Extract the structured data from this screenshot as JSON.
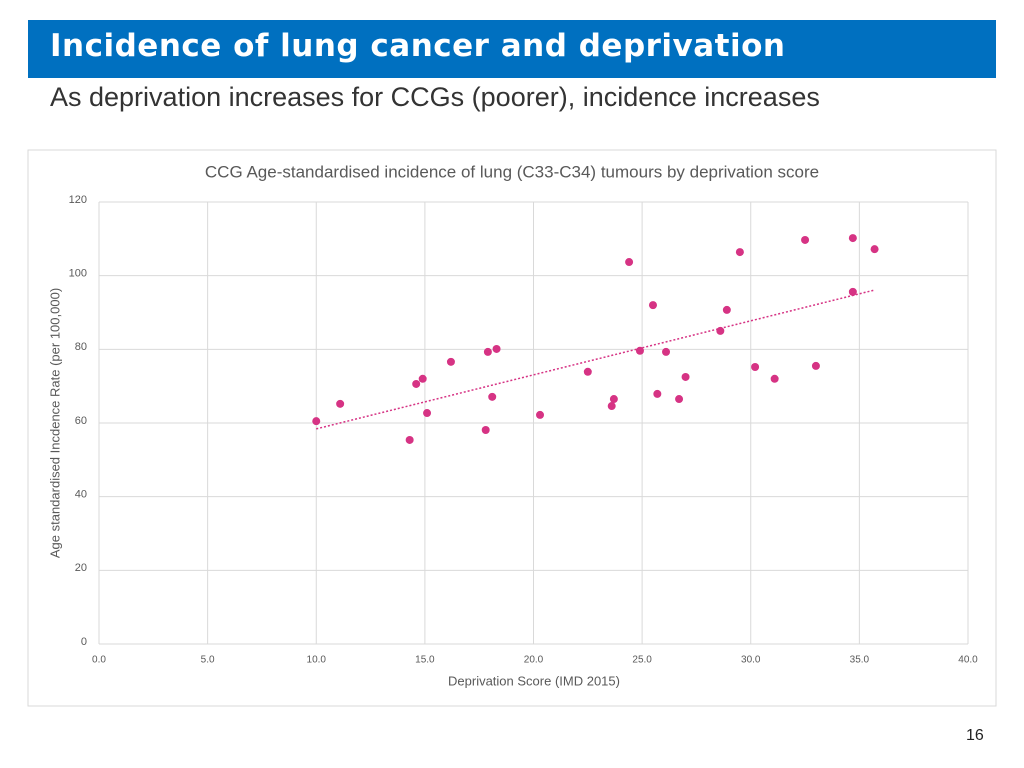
{
  "slide": {
    "title": "Incidence of lung cancer and deprivation",
    "subtitle": "As deprivation increases for CCGs (poorer), incidence increases",
    "page_number": "16"
  },
  "chart_data": {
    "type": "scatter",
    "title": "CCG Age-standardised incidence of lung (C33-C34) tumours by deprivation score",
    "x_label": "Deprivation Score (IMD 2015)",
    "y_label": "Age standardised Incdence Rate (per 100,000)",
    "xlim": [
      0,
      40
    ],
    "ylim": [
      0,
      120
    ],
    "xticks": [
      {
        "value": 0,
        "label": "0.0"
      },
      {
        "value": 5,
        "label": "5.0"
      },
      {
        "value": 10,
        "label": "10.0"
      },
      {
        "value": 15,
        "label": "15.0"
      },
      {
        "value": 20,
        "label": "20.0"
      },
      {
        "value": 25,
        "label": "25.0"
      },
      {
        "value": 30,
        "label": "30.0"
      },
      {
        "value": 35,
        "label": "35.0"
      },
      {
        "value": 40,
        "label": "40.0"
      }
    ],
    "yticks": [
      0,
      20,
      40,
      60,
      80,
      100,
      120
    ],
    "grid": true,
    "color": "#d63384",
    "x": [
      10.0,
      11.1,
      14.3,
      14.6,
      14.9,
      15.1,
      16.2,
      17.8,
      17.9,
      18.1,
      18.3,
      20.3,
      22.5,
      23.6,
      23.7,
      24.4,
      24.9,
      25.5,
      25.7,
      26.1,
      26.7,
      27.0,
      28.6,
      28.9,
      29.5,
      30.2,
      31.1,
      32.5,
      33.0,
      34.7,
      34.7,
      35.7
    ],
    "y": [
      60.5,
      65.2,
      55.4,
      70.6,
      72.0,
      62.7,
      76.6,
      58.1,
      79.3,
      67.1,
      80.1,
      62.2,
      73.9,
      64.6,
      66.5,
      103.7,
      79.6,
      92.0,
      67.9,
      79.3,
      66.5,
      72.5,
      85.0,
      90.7,
      106.4,
      75.2,
      72.0,
      109.7,
      75.5,
      110.2,
      95.6,
      107.2
    ],
    "trendline": {
      "x": [
        10.0,
        35.7
      ],
      "y": [
        58.4,
        96.1
      ],
      "color": "#d63384",
      "style": "dotted"
    }
  }
}
